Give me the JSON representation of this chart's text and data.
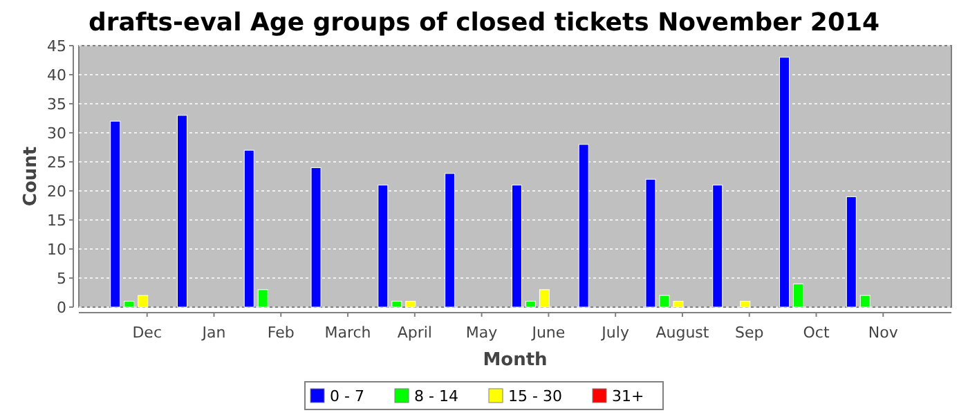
{
  "chart_data": {
    "type": "bar",
    "title": "drafts-eval Age groups of closed tickets November 2014",
    "xlabel": "Month",
    "ylabel": "Count",
    "categories": [
      "Dec",
      "Jan",
      "Feb",
      "March",
      "April",
      "May",
      "June",
      "July",
      "August",
      "Sep",
      "Oct",
      "Nov"
    ],
    "series": [
      {
        "name": "0 - 7",
        "color": "#0000ff",
        "values": [
          32,
          33,
          27,
          24,
          21,
          23,
          21,
          28,
          22,
          21,
          43,
          19
        ]
      },
      {
        "name": "8 - 14",
        "color": "#00ff00",
        "values": [
          1,
          0,
          3,
          0,
          1,
          0,
          1,
          0,
          2,
          0,
          4,
          2
        ]
      },
      {
        "name": "15 - 30",
        "color": "#ffff00",
        "values": [
          2,
          0,
          0,
          0,
          1,
          0,
          3,
          0,
          1,
          1,
          0,
          0
        ]
      },
      {
        "name": "31+",
        "color": "#ff0000",
        "values": [
          0,
          0,
          0,
          0,
          0,
          0,
          0,
          0,
          0,
          0,
          0,
          0
        ]
      }
    ],
    "ylim": [
      0,
      45
    ],
    "yticks": [
      0,
      5,
      10,
      15,
      20,
      25,
      30,
      35,
      40,
      45
    ],
    "grid": "y",
    "legend": "bottom"
  }
}
